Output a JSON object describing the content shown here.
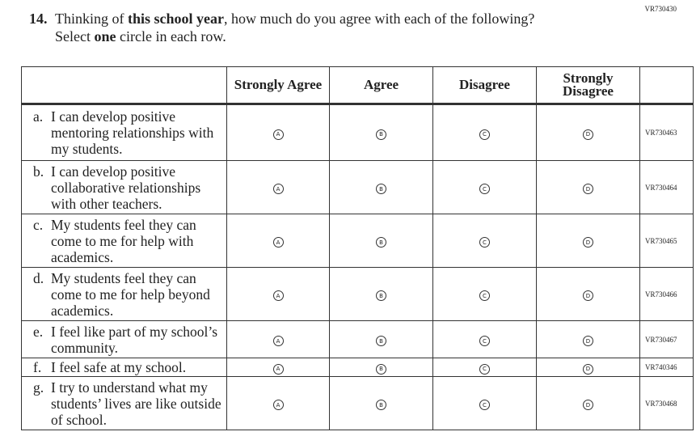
{
  "form_code": "VR730430",
  "question": {
    "number": "14.",
    "line1": [
      {
        "text": "Thinking of ",
        "bold": false
      },
      {
        "text": "this school year",
        "bold": true
      },
      {
        "text": ", how much do you agree with each of the following?",
        "bold": false
      }
    ],
    "line2": [
      {
        "text": "Select ",
        "bold": false
      },
      {
        "text": "one",
        "bold": true
      },
      {
        "text": " circle in each row.",
        "bold": false
      }
    ]
  },
  "table": {
    "options": [
      {
        "header": "Strongly Agree",
        "letter": "A"
      },
      {
        "header": "Agree",
        "letter": "B"
      },
      {
        "header": "Disagree",
        "letter": "C"
      },
      {
        "header": "Strongly Disagree",
        "letter": "D"
      }
    ],
    "rows": [
      {
        "letter": "a.",
        "text": "I can develop positive mentoring relationships with my students.",
        "code": "VR730463"
      },
      {
        "letter": "b.",
        "text": "I can develop positive collaborative relationships with other teachers.",
        "code": "VR730464"
      },
      {
        "letter": "c.",
        "text": "My students feel they can come to me for help with academics.",
        "code": "VR730465"
      },
      {
        "letter": "d.",
        "text": "My students feel they can come to me for help beyond academics.",
        "code": "VR730466"
      },
      {
        "letter": "e.",
        "text": "I feel like part of my school’s community.",
        "code": "VR730467"
      },
      {
        "letter": "f.",
        "text": "I feel safe at my school.",
        "code": "VR740346"
      },
      {
        "letter": "g.",
        "text": "I try to understand what my students’ lives are like outside of school.",
        "code": "VR730468"
      }
    ]
  }
}
